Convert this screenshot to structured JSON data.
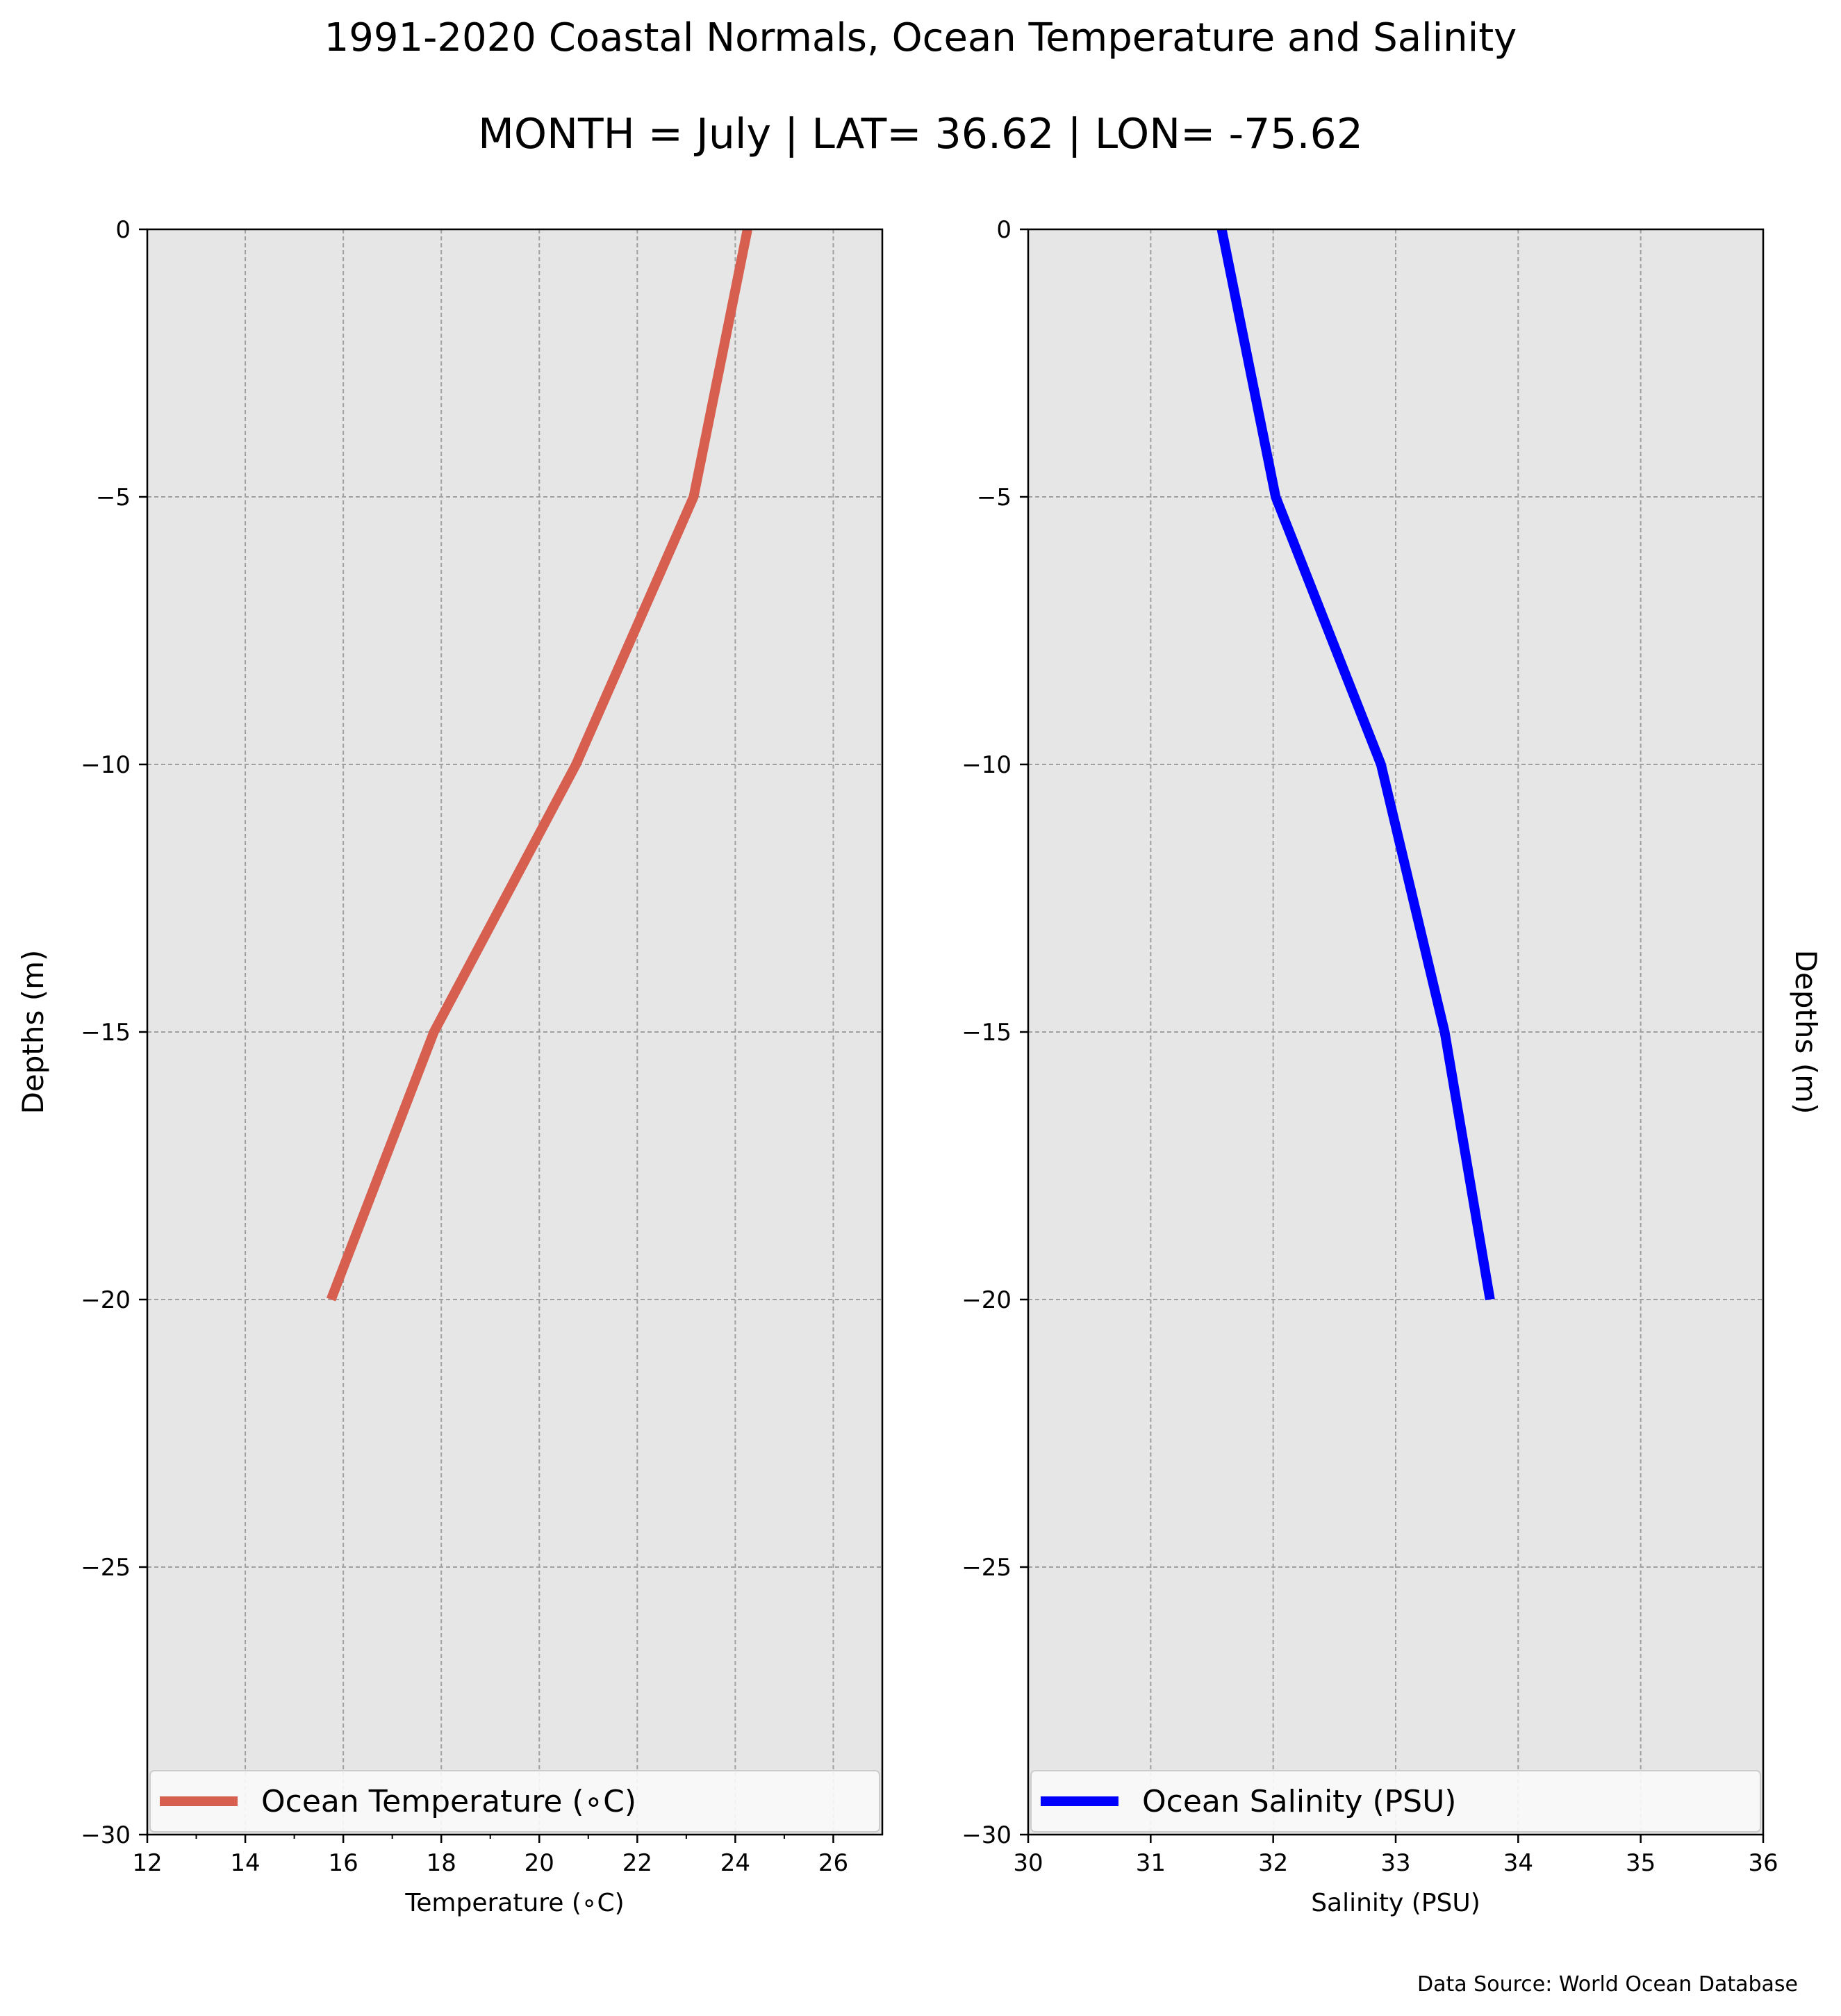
{
  "figure": {
    "title": "1991-2020 Coastal Normals, Ocean Temperature and Salinity",
    "subtitle": "MONTH = July | LAT= 36.62 | LON= -75.62",
    "source_note": "Data Source: World Ocean Database"
  },
  "colors": {
    "panel_background": "#e6e6e6",
    "grid": "#a0a0a0",
    "temperature_line": "#d65f4f",
    "salinity_line": "#0000ff"
  },
  "chart_data": [
    {
      "type": "line",
      "id": "temperature",
      "xlabel": "Temperature (∘C)",
      "ylabel": "Depths (m)",
      "ylabel_side": "left",
      "xlim": [
        12,
        27
      ],
      "ylim": [
        -30,
        0
      ],
      "xticks": [
        12,
        14,
        16,
        18,
        20,
        22,
        24,
        26
      ],
      "xtick_labels": [
        "12",
        "14",
        "16",
        "18",
        "20",
        "22",
        "24",
        "26"
      ],
      "yticks": [
        0,
        -5,
        -10,
        -15,
        -20,
        -25,
        -30
      ],
      "ytick_labels": [
        "0",
        "−5",
        "−10",
        "−15",
        "−20",
        "−25",
        "−30"
      ],
      "grid": true,
      "legend_position": "lower-center",
      "series": [
        {
          "name": "Ocean Temperature (∘C)",
          "color": "#d65f4f",
          "x": [
            24.25,
            23.15,
            20.75,
            17.85,
            15.75
          ],
          "y": [
            0,
            -5,
            -10,
            -15,
            -20
          ]
        }
      ]
    },
    {
      "type": "line",
      "id": "salinity",
      "xlabel": "Salinity (PSU)",
      "ylabel": "Depths (m)",
      "ylabel_side": "right",
      "xlim": [
        30,
        36
      ],
      "ylim": [
        -30,
        0
      ],
      "xticks": [
        30,
        31,
        32,
        33,
        34,
        35,
        36
      ],
      "xtick_labels": [
        "30",
        "31",
        "32",
        "33",
        "34",
        "35",
        "36"
      ],
      "yticks": [
        0,
        -5,
        -10,
        -15,
        -20,
        -25,
        -30
      ],
      "ytick_labels": [
        "0",
        "−5",
        "−10",
        "−15",
        "−20",
        "−25",
        "−30"
      ],
      "grid": true,
      "legend_position": "lower-center",
      "series": [
        {
          "name": "Ocean Salinity (PSU)",
          "color": "#0000ff",
          "x": [
            31.58,
            32.02,
            32.88,
            33.4,
            33.77
          ],
          "y": [
            0,
            -5,
            -10,
            -15,
            -20
          ]
        }
      ]
    }
  ]
}
